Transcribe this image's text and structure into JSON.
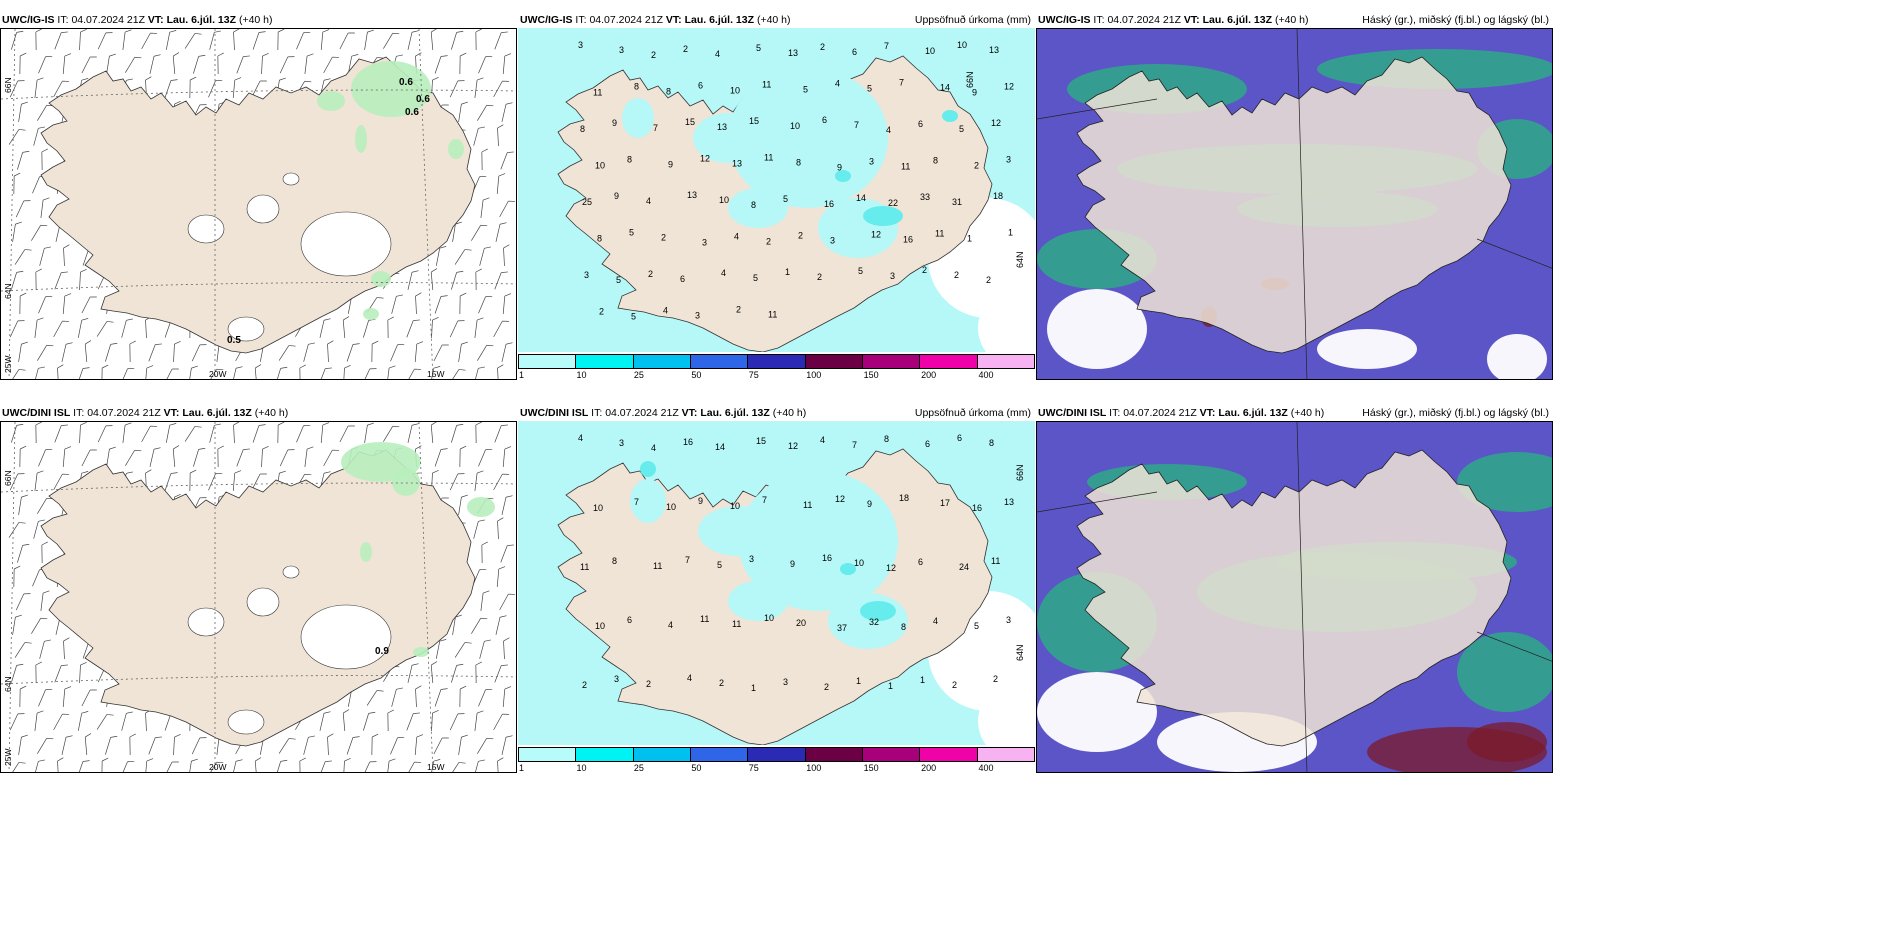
{
  "colors": {
    "land": "#f0e4d6",
    "precip_light": "#b6f7f7",
    "precip_mid": "#66ecec",
    "green": "#b8eebc",
    "cloud_high": "#5b55c7",
    "cloud_mid": "#2ea987",
    "cloud_low": "#7b1a2a"
  },
  "colorbar": {
    "colors": [
      "#b7fbfb",
      "#00f3f3",
      "#00c0ef",
      "#2f66e8",
      "#2a2ab5",
      "#6b0045",
      "#a8007a",
      "#ef02a8",
      "#f7b2f2"
    ],
    "ticks": [
      "1",
      "10",
      "25",
      "50",
      "75",
      "100",
      "150",
      "200",
      "400"
    ]
  },
  "axis": {
    "lat_top": "66N",
    "lat_bottom": "64N",
    "lon_left": "25W",
    "lon_mid": "20W",
    "lon_right": "15W"
  },
  "top": {
    "left": {
      "model": "UWC/IG-IS",
      "it_label": "IT:",
      "it_value": "04.07.2024 21Z",
      "vt_label": "VT:",
      "vt_value": "Lau. 6.júl. 13Z",
      "lead": "(+40 h)",
      "values": [
        "0.6",
        "0.6",
        "0.6",
        "0.5"
      ]
    },
    "middle": {
      "model": "UWC/IG-IS",
      "it_label": "IT:",
      "it_value": "04.07.2024 21Z",
      "vt_label": "VT:",
      "vt_value": "Lau. 6.júl. 13Z",
      "lead": "(+40 h)",
      "right_label": "Uppsöfnuð úrkoma (mm)"
    },
    "right": {
      "model": "UWC/IG-IS",
      "it_label": "IT:",
      "it_value": "04.07.2024 21Z",
      "vt_label": "VT:",
      "vt_value": "Lau. 6.júl. 13Z",
      "lead": "(+40 h)",
      "right_label": "Háský (gr.), miðský (fj.bl.) og lágský (bl.)"
    }
  },
  "bottom": {
    "left": {
      "model": "UWC/DINI ISL",
      "it_label": "IT:",
      "it_value": "04.07.2024 21Z",
      "vt_label": "VT:",
      "vt_value": "Lau. 6.júl. 13Z",
      "lead": "(+40 h)",
      "values": [
        "0.9"
      ]
    },
    "middle": {
      "model": "UWC/DINI ISL",
      "it_label": "IT:",
      "it_value": "04.07.2024 21Z",
      "vt_label": "VT:",
      "vt_value": "Lau. 6.júl. 13Z",
      "lead": "(+40 h)",
      "right_label": "Uppsöfnuð úrkoma (mm)"
    },
    "right": {
      "model": "UWC/DINI ISL",
      "it_label": "IT:",
      "it_value": "04.07.2024 21Z",
      "vt_label": "VT:",
      "vt_value": "Lau. 6.júl. 13Z",
      "lead": "(+40 h)",
      "right_label": "Háský (gr.), miðský (fj.bl.) og lágský (bl.)"
    }
  },
  "precip_top": [
    "3",
    "3",
    "2",
    "2",
    "4",
    "5",
    "13",
    "2",
    "6",
    "7",
    "10",
    "10",
    "13",
    "11",
    "8",
    "8",
    "6",
    "10",
    "11",
    "5",
    "4",
    "5",
    "7",
    "14",
    "9",
    "12",
    "8",
    "9",
    "7",
    "15",
    "13",
    "15",
    "10",
    "6",
    "7",
    "4",
    "6",
    "5",
    "12",
    "10",
    "8",
    "9",
    "12",
    "13",
    "11",
    "8",
    "9",
    "3",
    "11",
    "8",
    "2",
    "3",
    "25",
    "9",
    "4",
    "13",
    "10",
    "8",
    "5",
    "16",
    "14",
    "22",
    "33",
    "31",
    "18",
    "8",
    "5",
    "2",
    "3",
    "4",
    "2",
    "2",
    "3",
    "12",
    "16",
    "11",
    "1",
    "1",
    "3",
    "5",
    "2",
    "6",
    "4",
    "5",
    "1",
    "2",
    "5",
    "3",
    "2",
    "2",
    "2",
    "2",
    "5",
    "4",
    "3",
    "2",
    "11"
  ],
  "precip_bottom": [
    "4",
    "3",
    "4",
    "16",
    "14",
    "15",
    "12",
    "4",
    "7",
    "8",
    "6",
    "6",
    "8",
    "10",
    "7",
    "10",
    "9",
    "10",
    "7",
    "11",
    "12",
    "9",
    "18",
    "17",
    "16",
    "13",
    "11",
    "8",
    "11",
    "7",
    "5",
    "3",
    "9",
    "16",
    "10",
    "12",
    "6",
    "24",
    "11",
    "10",
    "6",
    "4",
    "11",
    "11",
    "10",
    "20",
    "37",
    "32",
    "8",
    "4",
    "5",
    "3",
    "2",
    "3",
    "2",
    "4",
    "2",
    "1",
    "3",
    "2",
    "1",
    "1",
    "1",
    "2",
    "2"
  ]
}
